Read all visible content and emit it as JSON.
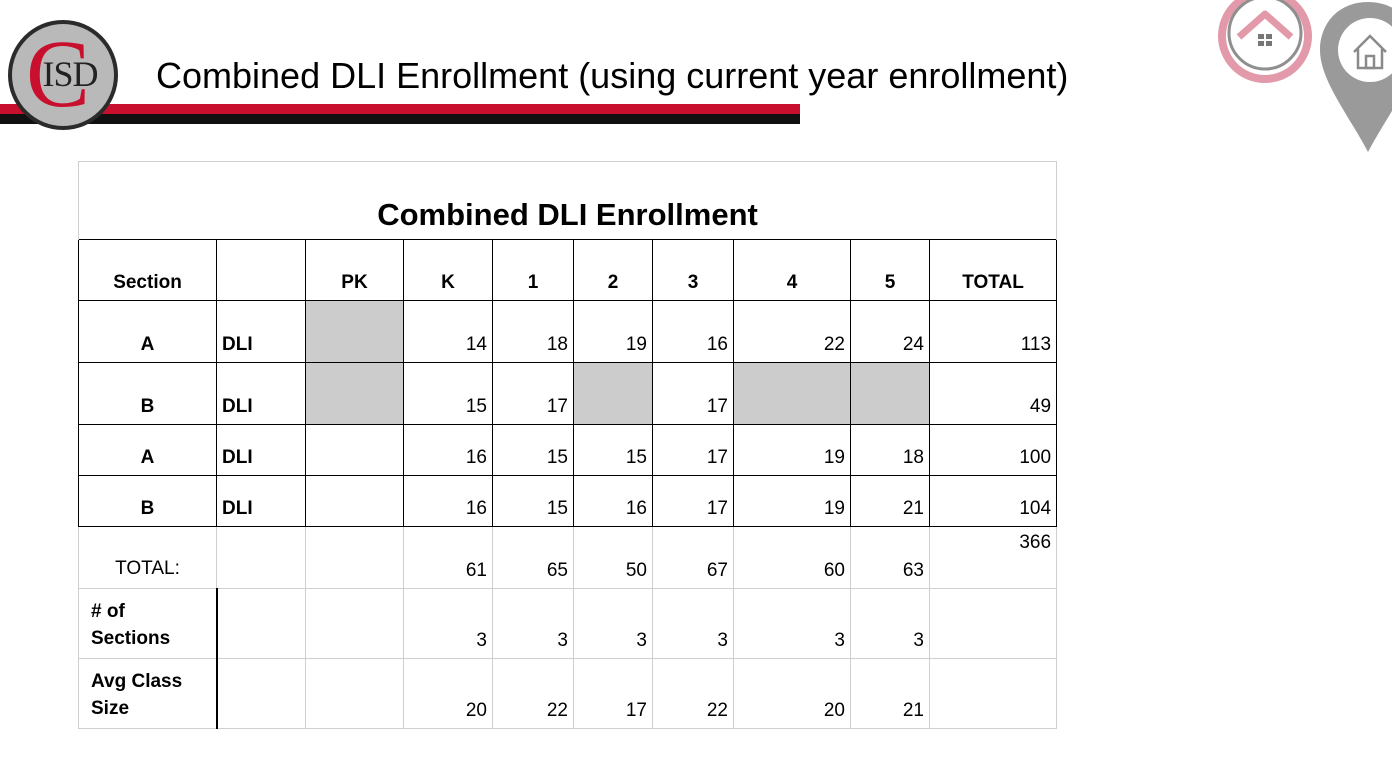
{
  "logo": {
    "letter": "C",
    "text": "ISD"
  },
  "page_title": "Combined DLI Enrollment (using current year enrollment)",
  "icons": [
    "home-pin-icon",
    "home-outline-pin-icon"
  ],
  "colors": {
    "accent_red": "#c8102e",
    "bar_black": "#111111",
    "blocked_cell": "#cccccc",
    "pink_icon": "#e29aab",
    "gray_icon": "#9a9a9a"
  },
  "table": {
    "title": "Combined DLI Enrollment",
    "headers": [
      "Section",
      "",
      "PK",
      "K",
      "1",
      "2",
      "3",
      "4",
      "5",
      "TOTAL"
    ],
    "rows": [
      {
        "section": "A",
        "program": "DLI",
        "values": [
          "",
          "14",
          "18",
          "19",
          "16",
          "22",
          "24"
        ],
        "total": "113",
        "blocked": [
          0
        ]
      },
      {
        "section": "B",
        "program": "DLI",
        "values": [
          "",
          "15",
          "17",
          "",
          "17",
          "",
          ""
        ],
        "total": "49",
        "blocked": [
          0,
          3,
          5,
          6
        ]
      },
      {
        "section": "A",
        "program": "DLI",
        "values": [
          "",
          "16",
          "15",
          "15",
          "17",
          "19",
          "18"
        ],
        "total": "100",
        "blocked": []
      },
      {
        "section": "B",
        "program": "DLI",
        "values": [
          "",
          "16",
          "15",
          "16",
          "17",
          "19",
          "21"
        ],
        "total": "104",
        "blocked": []
      }
    ],
    "totals": {
      "label": "TOTAL:",
      "values": [
        "",
        "61",
        "65",
        "50",
        "67",
        "60",
        "63"
      ],
      "grand_total": "366"
    },
    "sections": {
      "label_line1": "# of",
      "label_line2": "Sections",
      "values": [
        "",
        "3",
        "3",
        "3",
        "3",
        "3",
        "3"
      ]
    },
    "avg_class_size": {
      "label_line1": "Avg Class",
      "label_line2": "Size",
      "values": [
        "",
        "20",
        "22",
        "17",
        "22",
        "20",
        "21"
      ]
    }
  }
}
